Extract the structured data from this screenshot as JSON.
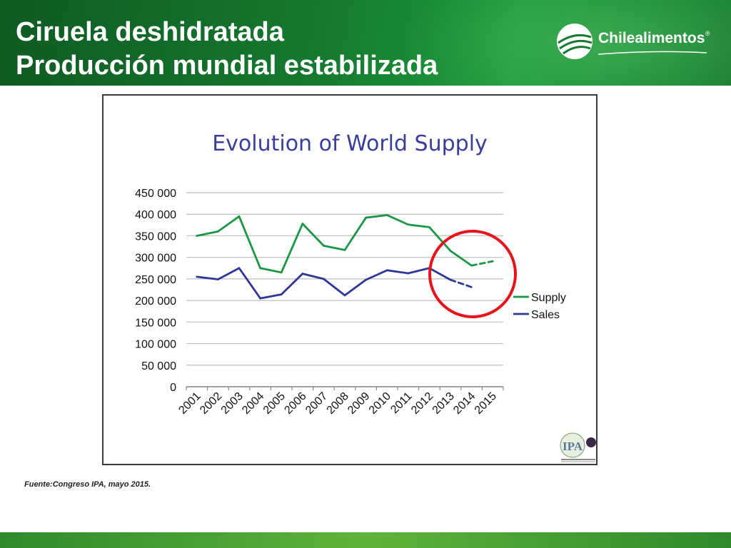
{
  "header": {
    "title_line1": "Ciruela deshidratada",
    "title_line2": "Producción mundial estabilizada",
    "logo_text": "Chilealimentos",
    "logo_reg": "®"
  },
  "source_note": "Fuente:Congreso IPA, mayo 2015.",
  "ipa_logo_text": "IPA",
  "colors": {
    "header_green": "#167a30",
    "supply": "#1a9646",
    "sales": "#2e3796",
    "title_blue": "#3b3d9c",
    "highlight_circle": "#e8141b"
  },
  "chart_data": {
    "type": "line",
    "title": "Evolution of World Supply",
    "x": [
      "2001",
      "2002",
      "2003",
      "2004",
      "2005",
      "2006",
      "2007",
      "2008",
      "2009",
      "2010",
      "2011",
      "2012",
      "2013",
      "2014",
      "2015"
    ],
    "ylim": [
      0,
      450000
    ],
    "yticks": [
      0,
      50000,
      100000,
      150000,
      200000,
      250000,
      300000,
      350000,
      400000,
      450000
    ],
    "ytick_labels": [
      "0",
      "50 000",
      "100 000",
      "150 000",
      "200 000",
      "250 000",
      "300 000",
      "350 000",
      "400 000",
      "450 000"
    ],
    "grid": true,
    "legend_position": "right",
    "series": [
      {
        "name": "Supply",
        "values": [
          350000,
          360000,
          395000,
          275000,
          265000,
          378000,
          327000,
          317000,
          392000,
          398000,
          376000,
          370000,
          315000,
          281000,
          291000
        ],
        "dashed_from_index": 13
      },
      {
        "name": "Sales",
        "values": [
          255000,
          249000,
          275000,
          205000,
          214000,
          262000,
          250000,
          212000,
          248000,
          270000,
          263000,
          275000,
          248000,
          231000,
          null
        ],
        "dashed_from_index": 12
      }
    ],
    "highlight_circle_around": [
      "2013",
      "2015"
    ]
  }
}
